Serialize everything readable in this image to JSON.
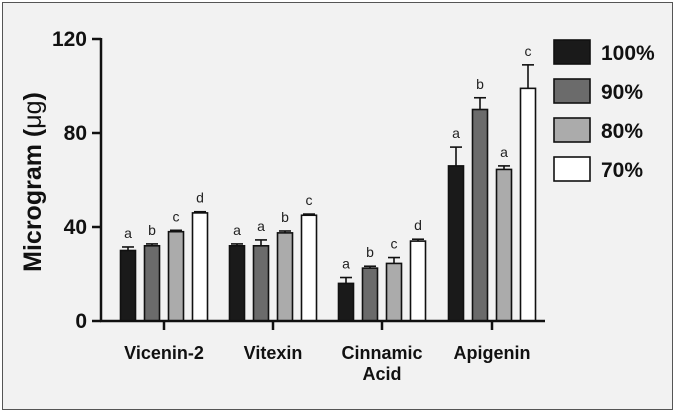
{
  "chart_data": {
    "type": "bar",
    "ylabel_prefix": "Microgram (",
    "ylabel_unit": "μg",
    "ylabel_suffix": ")",
    "ylim": [
      0,
      120
    ],
    "yticks": [
      "0",
      "40",
      "80",
      "120"
    ],
    "ytick_values": [
      0,
      40,
      80,
      120
    ],
    "categories": [
      {
        "lines": [
          "Vicenin-2"
        ]
      },
      {
        "lines": [
          "Vitexin"
        ]
      },
      {
        "lines": [
          "Cinnamic",
          "Acid"
        ]
      },
      {
        "lines": [
          "Apigenin"
        ]
      }
    ],
    "series": [
      {
        "name": "100%",
        "color": "#1a1a1a",
        "values": [
          30,
          32,
          16,
          66
        ],
        "errors": [
          1.5,
          0.8,
          2.5,
          8
        ],
        "letters": [
          "a",
          "a",
          "a",
          "a"
        ]
      },
      {
        "name": "90%",
        "color": "#6b6b6b",
        "values": [
          32,
          32,
          22.5,
          90
        ],
        "errors": [
          0.8,
          2.5,
          0.8,
          5
        ],
        "letters": [
          "b",
          "a",
          "b",
          "b"
        ]
      },
      {
        "name": "80%",
        "color": "#ababab",
        "values": [
          38,
          37.5,
          24.5,
          64.5
        ],
        "errors": [
          0.6,
          0.8,
          2.5,
          1.5
        ],
        "letters": [
          "c",
          "b",
          "c",
          "a"
        ]
      },
      {
        "name": "70%",
        "color": "#ffffff",
        "values": [
          46,
          45,
          34,
          99
        ],
        "errors": [
          0.5,
          0.5,
          0.8,
          10
        ],
        "letters": [
          "d",
          "c",
          "d",
          "c"
        ]
      }
    ],
    "legend_position": "right",
    "grid": false
  }
}
